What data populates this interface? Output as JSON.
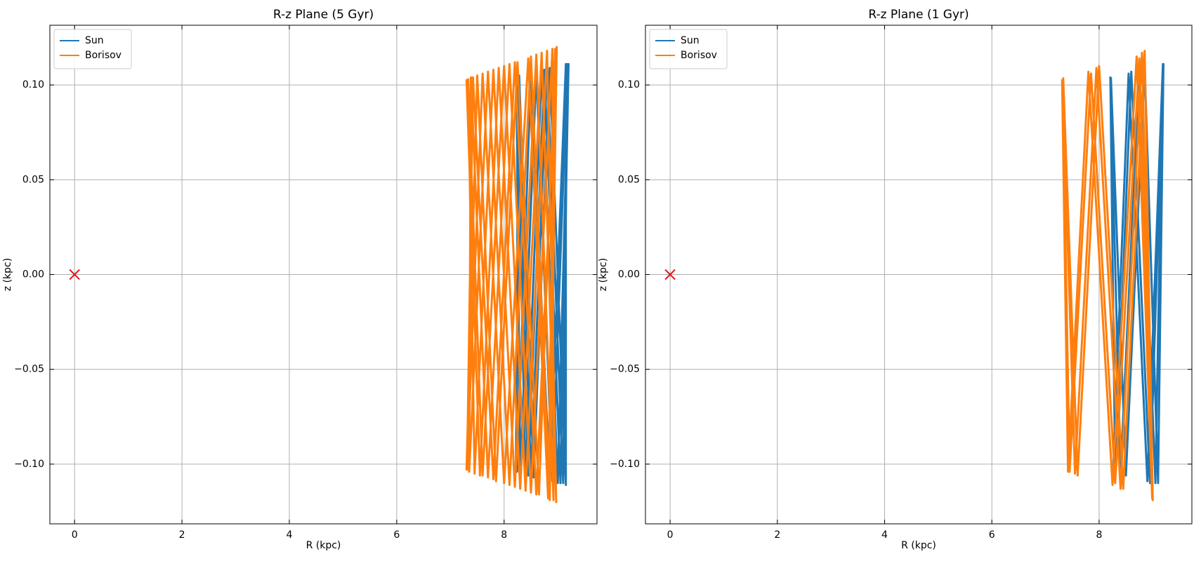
{
  "chart_data": [
    {
      "type": "line",
      "title": "R-z Plane (5 Gyr)",
      "x_label": "R (kpc)",
      "y_label": "z (kpc)",
      "xlim": [
        -0.46,
        9.73
      ],
      "ylim": [
        -0.1315,
        0.1315
      ],
      "xticks": [
        0,
        2,
        4,
        6,
        8
      ],
      "yticks": [
        {
          "value": -0.1,
          "label": "−0.10"
        },
        {
          "value": -0.05,
          "label": "−0.05"
        },
        {
          "value": 0,
          "label": "0.00"
        },
        {
          "value": 0.05,
          "label": "0.05"
        },
        {
          "value": 0.1,
          "label": "0.10"
        }
      ],
      "grid": true,
      "legend": "upper left",
      "marker": {
        "x": 0,
        "y": 0,
        "color": "#e41a1c"
      },
      "series": [
        {
          "name": "Sun",
          "color": "#1f77b4",
          "x": [
            8.22,
            8.45,
            8.75,
            9.05,
            9.2,
            9.0,
            8.7,
            8.4,
            8.23,
            8.3,
            8.6,
            8.9,
            9.18,
            9.1,
            8.8,
            8.5,
            8.25,
            8.24,
            8.5,
            8.85,
            9.15,
            9.15,
            8.85,
            8.55,
            8.28,
            8.22
          ],
          "y": [
            0.104,
            -0.106,
            0.108,
            -0.11,
            0.111,
            -0.11,
            0.108,
            -0.106,
            0.104,
            -0.105,
            0.107,
            -0.109,
            0.111,
            -0.11,
            0.108,
            -0.106,
            0.104,
            -0.104,
            0.106,
            -0.109,
            0.111,
            -0.111,
            0.109,
            -0.107,
            0.105,
            -0.104
          ]
        },
        {
          "name": "Borisov",
          "color": "#ff7f0e",
          "x": [
            7.3,
            7.55,
            7.9,
            8.3,
            8.7,
            8.97,
            8.8,
            8.4,
            8.0,
            7.6,
            7.33,
            7.45,
            7.8,
            8.2,
            8.6,
            8.92,
            8.9,
            8.5,
            8.1,
            7.7,
            7.38,
            7.35,
            7.7,
            8.1,
            8.5,
            8.85,
            8.98,
            8.6,
            8.2,
            7.8,
            7.42,
            7.31,
            7.6,
            8.0,
            8.45,
            8.82,
            8.95,
            8.65,
            8.25,
            7.85,
            7.5,
            7.3
          ],
          "y": [
            0.103,
            -0.106,
            0.109,
            -0.113,
            0.117,
            -0.12,
            0.118,
            -0.114,
            0.11,
            -0.106,
            0.103,
            -0.105,
            0.108,
            -0.112,
            0.116,
            -0.119,
            0.119,
            -0.115,
            0.111,
            -0.107,
            0.104,
            -0.104,
            0.107,
            -0.111,
            0.115,
            -0.119,
            0.12,
            -0.116,
            0.112,
            -0.108,
            0.104,
            -0.103,
            0.106,
            -0.11,
            0.114,
            -0.118,
            0.119,
            -0.116,
            0.112,
            -0.109,
            0.105,
            -0.103
          ]
        }
      ]
    },
    {
      "type": "line",
      "title": "R-z Plane (1 Gyr)",
      "x_label": "R (kpc)",
      "y_label": "z (kpc)",
      "xlim": [
        -0.46,
        9.73
      ],
      "ylim": [
        -0.1315,
        0.1315
      ],
      "xticks": [
        0,
        2,
        4,
        6,
        8
      ],
      "yticks": [
        {
          "value": -0.1,
          "label": "−0.10"
        },
        {
          "value": -0.05,
          "label": "−0.05"
        },
        {
          "value": 0,
          "label": "0.00"
        },
        {
          "value": 0.05,
          "label": "0.05"
        },
        {
          "value": 0.1,
          "label": "0.10"
        }
      ],
      "grid": true,
      "legend": "upper left",
      "marker": {
        "x": 0,
        "y": 0,
        "color": "#e41a1c"
      },
      "series": [
        {
          "name": "Sun",
          "color": "#1f77b4",
          "x": [
            8.22,
            8.5,
            8.85,
            9.1,
            9.2,
            8.95,
            8.6,
            8.3,
            8.21,
            8.4,
            8.75,
            9.05,
            9.19,
            8.9,
            8.55,
            8.26
          ],
          "y": [
            0.104,
            -0.106,
            0.109,
            -0.11,
            0.111,
            -0.11,
            0.107,
            -0.105,
            0.104,
            -0.105,
            0.108,
            -0.11,
            0.111,
            -0.109,
            0.106,
            -0.104
          ]
        },
        {
          "name": "Borisov",
          "color": "#ff7f0e",
          "x": [
            7.33,
            7.6,
            8.0,
            8.45,
            8.85,
            9.0,
            8.75,
            8.3,
            7.85,
            7.45,
            7.32,
            7.55,
            7.95,
            8.4,
            8.8,
            8.99,
            8.7,
            8.25,
            7.8,
            7.42,
            7.31
          ],
          "y": [
            0.104,
            -0.106,
            0.11,
            -0.113,
            0.118,
            -0.119,
            0.114,
            -0.11,
            0.106,
            -0.104,
            0.102,
            -0.105,
            0.109,
            -0.113,
            0.117,
            -0.118,
            0.115,
            -0.111,
            0.107,
            -0.104,
            0.103
          ]
        }
      ]
    }
  ]
}
